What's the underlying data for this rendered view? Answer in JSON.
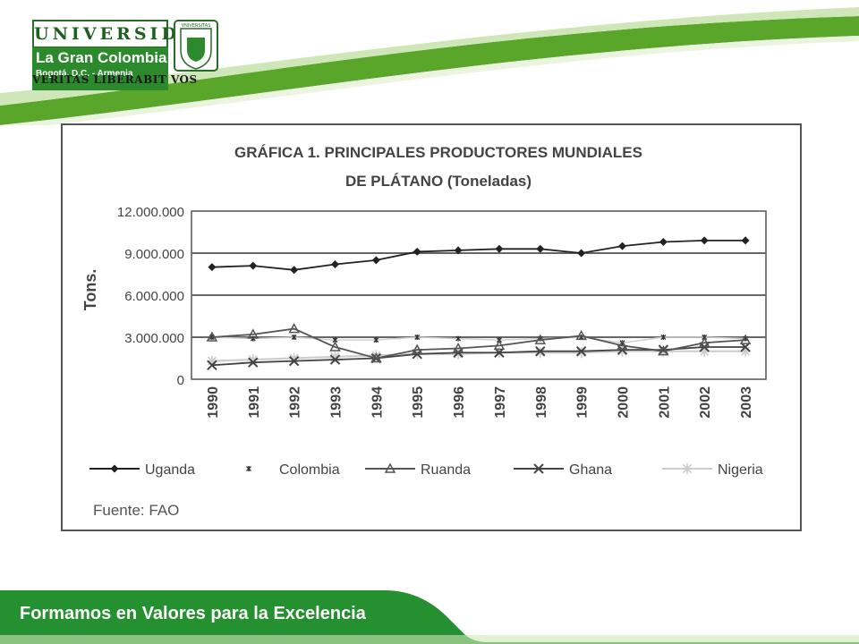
{
  "header": {
    "logo": {
      "word": "UNIVERSIDAD",
      "name": "La Gran Colombia",
      "city": "Bogotá, D.C. - Armenia",
      "seal_text": "VNIVERSITAS",
      "motto": "VERITAS LIBERABIT VOS"
    }
  },
  "footer": {
    "slogan": "Formamos en Valores para la Excelencia"
  },
  "colors": {
    "brand_green": "#2c8a2c",
    "accent_green": "#5aa62a",
    "footer_green": "#24902f"
  },
  "chart_data": {
    "type": "line",
    "title": "GRÁFICA 1. PRINCIPALES PRODUCTORES MUNDIALES",
    "subtitle": "DE PLÁTANO (Toneladas)",
    "ylabel": "Tons.",
    "xlabel": "",
    "ylim": [
      0,
      12000000
    ],
    "yticks": [
      "0",
      "3.000.000",
      "6.000.000",
      "9.000.000",
      "12.000.000"
    ],
    "categories": [
      "1990",
      "1991",
      "1992",
      "1993",
      "1994",
      "1995",
      "1996",
      "1997",
      "1998",
      "1999",
      "2000",
      "2001",
      "2002",
      "2003"
    ],
    "grid": true,
    "legend_position": "bottom",
    "source": "Fuente: FAO",
    "series": [
      {
        "name": "Uganda",
        "marker": "diamond",
        "values": [
          8000000,
          8100000,
          7800000,
          8200000,
          8500000,
          9100000,
          9200000,
          9300000,
          9300000,
          9000000,
          9500000,
          9800000,
          9900000,
          9900000
        ]
      },
      {
        "name": "Colombia",
        "marker": "asterisk",
        "values": [
          3000000,
          2900000,
          3000000,
          2800000,
          2800000,
          3000000,
          2900000,
          2800000,
          2900000,
          3000000,
          2600000,
          3000000,
          3000000,
          2900000
        ]
      },
      {
        "name": "Ruanda",
        "marker": "triangle",
        "values": [
          3000000,
          3200000,
          3600000,
          2300000,
          1500000,
          2100000,
          2200000,
          2400000,
          2800000,
          3100000,
          2400000,
          2000000,
          2600000,
          2800000
        ]
      },
      {
        "name": "Ghana",
        "marker": "x",
        "values": [
          1000000,
          1200000,
          1300000,
          1400000,
          1500000,
          1800000,
          1900000,
          1900000,
          2000000,
          2000000,
          2100000,
          2100000,
          2300000,
          2300000
        ]
      },
      {
        "name": "Nigeria",
        "marker": "star",
        "values": [
          1300000,
          1400000,
          1500000,
          1600000,
          1700000,
          1800000,
          1800000,
          1900000,
          1900000,
          1900000,
          2000000,
          2000000,
          2000000,
          2000000
        ]
      }
    ]
  }
}
